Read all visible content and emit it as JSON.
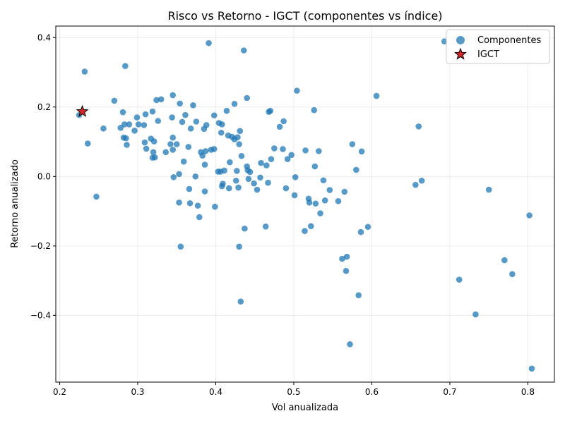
{
  "chart_data": {
    "type": "scatter",
    "title": "Risco vs Retorno - IGCT (componentes vs índice)",
    "xlabel": "Vol anualizada",
    "ylabel": "Retorno anualizado",
    "xlim": [
      0.195,
      0.834
    ],
    "ylim": [
      -0.592,
      0.433
    ],
    "xticks": [
      0.2,
      0.3,
      0.4,
      0.5,
      0.6,
      0.7,
      0.8
    ],
    "xtick_labels": [
      "0.2",
      "0.3",
      "0.4",
      "0.5",
      "0.6",
      "0.7",
      "0.8"
    ],
    "yticks": [
      -0.4,
      -0.2,
      0.0,
      0.2,
      0.4
    ],
    "ytick_labels": [
      "−0.4",
      "−0.2",
      "0.0",
      "0.2",
      "0.4"
    ],
    "grid": true,
    "legend_position": "top-right",
    "colors": {
      "components": "#1f77b4",
      "index": "#d62728"
    },
    "series": [
      {
        "name": "Componentes",
        "marker": "circle",
        "points": [
          [
            0.225,
            0.177
          ],
          [
            0.232,
            0.302
          ],
          [
            0.236,
            0.095
          ],
          [
            0.247,
            -0.058
          ],
          [
            0.256,
            0.138
          ],
          [
            0.27,
            0.218
          ],
          [
            0.278,
            0.14
          ],
          [
            0.281,
            0.185
          ],
          [
            0.282,
            0.112
          ],
          [
            0.283,
            0.15
          ],
          [
            0.284,
            0.318
          ],
          [
            0.285,
            0.11
          ],
          [
            0.286,
            0.091
          ],
          [
            0.289,
            0.15
          ],
          [
            0.296,
            0.132
          ],
          [
            0.299,
            0.17
          ],
          [
            0.301,
            0.15
          ],
          [
            0.308,
            0.148
          ],
          [
            0.309,
            0.098
          ],
          [
            0.31,
            0.179
          ],
          [
            0.311,
            0.08
          ],
          [
            0.317,
            0.109
          ],
          [
            0.319,
            0.187
          ],
          [
            0.319,
            0.054
          ],
          [
            0.32,
            0.07
          ],
          [
            0.321,
            0.101
          ],
          [
            0.322,
            0.055
          ],
          [
            0.324,
            0.22
          ],
          [
            0.326,
            0.16
          ],
          [
            0.33,
            0.222
          ],
          [
            0.336,
            0.07
          ],
          [
            0.342,
            0.093
          ],
          [
            0.344,
            0.17
          ],
          [
            0.345,
            0.234
          ],
          [
            0.345,
            0.077
          ],
          [
            0.345,
            0.112
          ],
          [
            0.346,
            -0.002
          ],
          [
            0.35,
            0.093
          ],
          [
            0.353,
            -0.075
          ],
          [
            0.353,
            0.007
          ],
          [
            0.354,
            0.21
          ],
          [
            0.355,
            -0.202
          ],
          [
            0.357,
            0.157
          ],
          [
            0.359,
            0.043
          ],
          [
            0.361,
            0.177
          ],
          [
            0.365,
            0.085
          ],
          [
            0.366,
            -0.036
          ],
          [
            0.367,
            -0.077
          ],
          [
            0.368,
            0.138
          ],
          [
            0.371,
            0.205
          ],
          [
            0.374,
            0.0
          ],
          [
            0.375,
            0.158
          ],
          [
            0.377,
            -0.084
          ],
          [
            0.379,
            -0.117
          ],
          [
            0.381,
            0.07
          ],
          [
            0.383,
            0.06
          ],
          [
            0.385,
            0.137
          ],
          [
            0.386,
            -0.043
          ],
          [
            0.386,
            0.034
          ],
          [
            0.387,
            0.073
          ],
          [
            0.388,
            0.148
          ],
          [
            0.391,
            0.384
          ],
          [
            0.394,
            0.077
          ],
          [
            0.398,
            0.079
          ],
          [
            0.398,
            0.176
          ],
          [
            0.399,
            -0.087
          ],
          [
            0.403,
            0.014
          ],
          [
            0.404,
            0.154
          ],
          [
            0.406,
            0.014
          ],
          [
            0.407,
            0.126
          ],
          [
            0.408,
            -0.028
          ],
          [
            0.408,
            0.15
          ],
          [
            0.409,
            -0.021
          ],
          [
            0.411,
            0.017
          ],
          [
            0.414,
            0.189
          ],
          [
            0.416,
            0.118
          ],
          [
            0.417,
            -0.034
          ],
          [
            0.418,
            0.041
          ],
          [
            0.421,
            0.114
          ],
          [
            0.424,
            0.209
          ],
          [
            0.424,
            0.107
          ],
          [
            0.426,
            -0.012
          ],
          [
            0.427,
            0.016
          ],
          [
            0.428,
            0.113
          ],
          [
            0.429,
            -0.032
          ],
          [
            0.43,
            -0.202
          ],
          [
            0.43,
            0.093
          ],
          [
            0.431,
            0.131
          ],
          [
            0.432,
            -0.36
          ],
          [
            0.433,
            0.059
          ],
          [
            0.436,
            0.363
          ],
          [
            0.437,
            -0.15
          ],
          [
            0.44,
            0.226
          ],
          [
            0.44,
            0.029
          ],
          [
            0.441,
            0.018
          ],
          [
            0.442,
            -0.007
          ],
          [
            0.444,
            0.013
          ],
          [
            0.449,
            -0.02
          ],
          [
            0.453,
            -0.038
          ],
          [
            0.457,
            -0.003
          ],
          [
            0.458,
            0.039
          ],
          [
            0.464,
            -0.144
          ],
          [
            0.465,
            0.032
          ],
          [
            0.467,
            -0.018
          ],
          [
            0.468,
            0.186
          ],
          [
            0.47,
            0.189
          ],
          [
            0.471,
            0.05
          ],
          [
            0.475,
            0.081
          ],
          [
            0.482,
            0.143
          ],
          [
            0.486,
            0.079
          ],
          [
            0.487,
            0.159
          ],
          [
            0.49,
            -0.034
          ],
          [
            0.492,
            0.05
          ],
          [
            0.497,
            0.062
          ],
          [
            0.501,
            -0.054
          ],
          [
            0.502,
            -0.002
          ],
          [
            0.504,
            0.247
          ],
          [
            0.514,
            -0.157
          ],
          [
            0.515,
            0.075
          ],
          [
            0.519,
            -0.064
          ],
          [
            0.52,
            -0.075
          ],
          [
            0.522,
            -0.143
          ],
          [
            0.526,
            0.191
          ],
          [
            0.527,
            0.029
          ],
          [
            0.528,
            -0.078
          ],
          [
            0.532,
            0.073
          ],
          [
            0.534,
            -0.106
          ],
          [
            0.538,
            -0.011
          ],
          [
            0.54,
            -0.069
          ],
          [
            0.546,
            -0.039
          ],
          [
            0.557,
            -0.071
          ],
          [
            0.562,
            -0.237
          ],
          [
            0.565,
            -0.044
          ],
          [
            0.567,
            -0.272
          ],
          [
            0.568,
            -0.231
          ],
          [
            0.572,
            -0.483
          ],
          [
            0.575,
            0.093
          ],
          [
            0.58,
            0.019
          ],
          [
            0.583,
            -0.342
          ],
          [
            0.586,
            -0.16
          ],
          [
            0.587,
            0.072
          ],
          [
            0.595,
            -0.145
          ],
          [
            0.606,
            0.232
          ],
          [
            0.656,
            -0.024
          ],
          [
            0.66,
            0.144
          ],
          [
            0.664,
            -0.012
          ],
          [
            0.693,
            0.389
          ],
          [
            0.712,
            -0.297
          ],
          [
            0.733,
            -0.397
          ],
          [
            0.75,
            -0.038
          ],
          [
            0.77,
            -0.241
          ],
          [
            0.78,
            -0.281
          ],
          [
            0.802,
            -0.112
          ],
          [
            0.805,
            -0.553
          ]
        ]
      },
      {
        "name": "IGCT",
        "marker": "star",
        "points": [
          [
            0.229,
            0.187
          ]
        ]
      }
    ]
  }
}
